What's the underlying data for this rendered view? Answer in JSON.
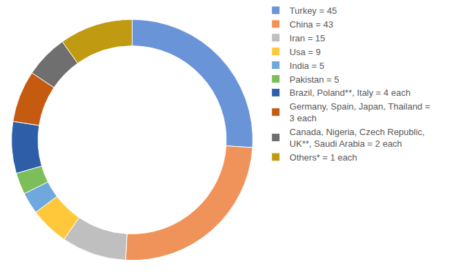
{
  "chart_data": {
    "type": "donut",
    "labels": [
      "Turkey = 45",
      "China = 43",
      "Iran = 15",
      "Usa = 9",
      "India = 5",
      "Pakistan = 5",
      "Brazil, Poland**, Italy = 4 each",
      "Germany, Spain, Japan, Thailand = 3 each",
      "Canada, Nigeria, Czech Republic, UK**, Saudi Arabia = 2 each",
      "Others* = 1 each"
    ],
    "values": [
      45,
      43,
      15,
      9,
      5,
      5,
      12,
      12,
      10,
      17
    ],
    "colors": [
      "#6a94d8",
      "#f0935a",
      "#bfbfbf",
      "#ffc83a",
      "#6fa8dc",
      "#7cbf5a",
      "#2f5ea8",
      "#c55a11",
      "#6f6f6f",
      "#c09a10"
    ],
    "legend": "right",
    "data_labels": false
  }
}
